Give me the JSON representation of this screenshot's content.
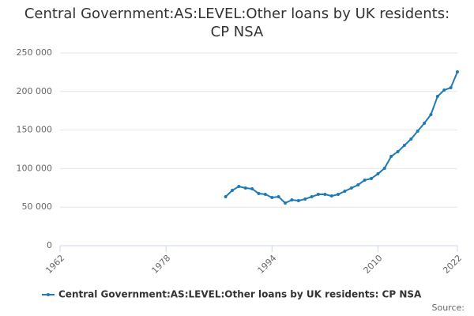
{
  "chart_data": {
    "type": "line",
    "title": "Central Government:AS:LEVEL:Other loans by UK residents: CP NSA",
    "x": [
      1987,
      1988,
      1989,
      1990,
      1991,
      1992,
      1993,
      1994,
      1995,
      1996,
      1997,
      1998,
      1999,
      2000,
      2001,
      2002,
      2003,
      2004,
      2005,
      2006,
      2007,
      2008,
      2009,
      2010,
      2011,
      2012,
      2013,
      2014,
      2015,
      2016,
      2017,
      2018,
      2019,
      2020,
      2021,
      2022
    ],
    "series": [
      {
        "name": "Central Government:AS:LEVEL:Other loans by UK residents: CP NSA",
        "color": "#1f7ab4",
        "values": [
          63500,
          71700,
          76800,
          74800,
          73800,
          67600,
          66600,
          62500,
          63500,
          55300,
          59400,
          58400,
          60500,
          63500,
          66600,
          66600,
          64500,
          66600,
          70700,
          74800,
          78900,
          85000,
          87100,
          93200,
          100400,
          115800,
          121900,
          130100,
          138300,
          148600,
          158800,
          170100,
          193600,
          201800,
          204900,
          225400
        ]
      }
    ],
    "xlim": [
      1962,
      2022
    ],
    "xticks": [
      1962,
      1978,
      1994,
      2010,
      2022
    ],
    "ylim": [
      0,
      250000
    ],
    "yticks": [
      0,
      {
        "value": 50000,
        "label": "50 000"
      },
      {
        "value": 100000,
        "label": "100 000"
      },
      {
        "value": 150000,
        "label": "150 000"
      },
      {
        "value": 200000,
        "label": "200 000"
      },
      {
        "value": 250000,
        "label": "250 000"
      }
    ],
    "grid": true,
    "legend": "bottom",
    "source": "Source:"
  }
}
